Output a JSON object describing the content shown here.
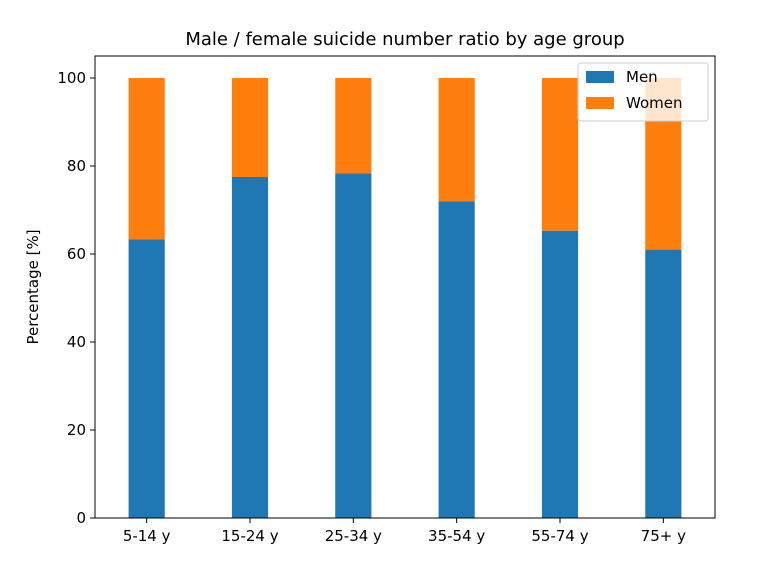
{
  "chart_data": {
    "type": "bar",
    "stacked": true,
    "title": "Male / female suicide number ratio by age group",
    "xlabel": "",
    "ylabel": "Percentage [%]",
    "ylim": [
      0,
      105
    ],
    "yticks": [
      0,
      20,
      40,
      60,
      80,
      100
    ],
    "categories": [
      "5-14 y",
      "15-24 y",
      "25-34 y",
      "35-54 y",
      "55-74 y",
      "75+ y"
    ],
    "series": [
      {
        "name": "Men",
        "color": "#1f77b4",
        "values": [
          63.3,
          77.5,
          78.3,
          72.0,
          65.3,
          61.0
        ]
      },
      {
        "name": "Women",
        "color": "#ff7f0e",
        "values": [
          36.7,
          22.5,
          21.7,
          28.0,
          34.7,
          39.0
        ]
      }
    ],
    "grid": false,
    "legend": "top-right"
  }
}
